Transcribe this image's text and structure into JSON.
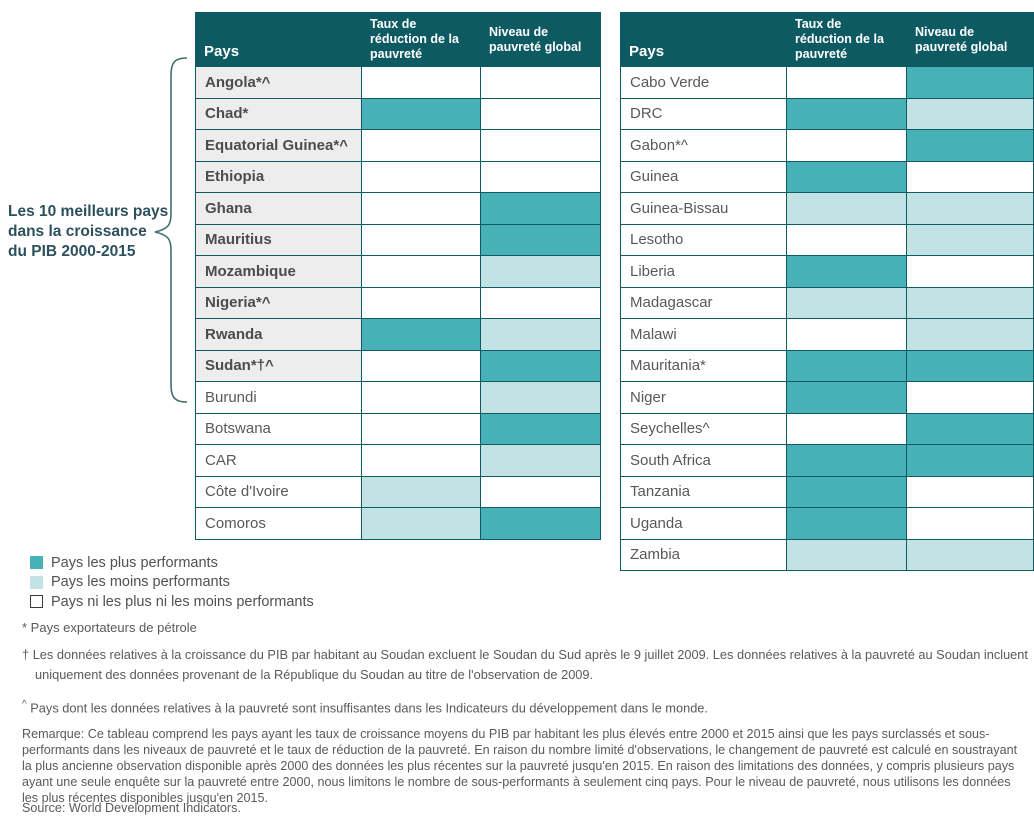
{
  "annotation": {
    "lines": [
      "Les 10 meilleurs pays",
      "dans la croissance",
      "du PIB 2000-2015"
    ]
  },
  "chart_data": {
    "type": "table",
    "columns": [
      "Pays",
      "Taux de réduction de la pauvreté",
      "Niveau de pauvreté global"
    ],
    "status_meaning": {
      "best": "Pays les plus performants",
      "worst": "Pays les moins performants",
      "neutral": "Pays ni les plus ni les moins performants"
    },
    "colors": {
      "best": "#47b1b7",
      "worst": "#c3e2e4",
      "neutral": "#ffffff",
      "header_bg": "#0d5a63",
      "top10_row_bg": "#ededed"
    },
    "tables": [
      {
        "rows": [
          {
            "country": "Angola*^",
            "top10": true,
            "poverty_reduction": "neutral",
            "poverty_level": "neutral"
          },
          {
            "country": "Chad*",
            "top10": true,
            "poverty_reduction": "best",
            "poverty_level": "neutral"
          },
          {
            "country": "Equatorial Guinea*^",
            "top10": true,
            "poverty_reduction": "neutral",
            "poverty_level": "neutral"
          },
          {
            "country": "Ethiopia",
            "top10": true,
            "poverty_reduction": "neutral",
            "poverty_level": "neutral"
          },
          {
            "country": "Ghana",
            "top10": true,
            "poverty_reduction": "neutral",
            "poverty_level": "best"
          },
          {
            "country": "Mauritius",
            "top10": true,
            "poverty_reduction": "neutral",
            "poverty_level": "best"
          },
          {
            "country": "Mozambique",
            "top10": true,
            "poverty_reduction": "neutral",
            "poverty_level": "worst"
          },
          {
            "country": "Nigeria*^",
            "top10": true,
            "poverty_reduction": "neutral",
            "poverty_level": "neutral"
          },
          {
            "country": "Rwanda",
            "top10": true,
            "poverty_reduction": "best",
            "poverty_level": "worst"
          },
          {
            "country": "Sudan*†^",
            "top10": true,
            "poverty_reduction": "neutral",
            "poverty_level": "best"
          },
          {
            "country": "Burundi",
            "top10": false,
            "poverty_reduction": "neutral",
            "poverty_level": "worst"
          },
          {
            "country": "Botswana",
            "top10": false,
            "poverty_reduction": "neutral",
            "poverty_level": "best"
          },
          {
            "country": "CAR",
            "top10": false,
            "poverty_reduction": "neutral",
            "poverty_level": "worst"
          },
          {
            "country": "Côte d'Ivoire",
            "top10": false,
            "poverty_reduction": "worst",
            "poverty_level": "neutral"
          },
          {
            "country": "Comoros",
            "top10": false,
            "poverty_reduction": "worst",
            "poverty_level": "best"
          }
        ]
      },
      {
        "rows": [
          {
            "country": "Cabo Verde",
            "top10": false,
            "poverty_reduction": "neutral",
            "poverty_level": "best"
          },
          {
            "country": "DRC",
            "top10": false,
            "poverty_reduction": "best",
            "poverty_level": "worst"
          },
          {
            "country": "Gabon*^",
            "top10": false,
            "poverty_reduction": "neutral",
            "poverty_level": "best"
          },
          {
            "country": "Guinea",
            "top10": false,
            "poverty_reduction": "best",
            "poverty_level": "neutral"
          },
          {
            "country": "Guinea-Bissau",
            "top10": false,
            "poverty_reduction": "worst",
            "poverty_level": "worst"
          },
          {
            "country": "Lesotho",
            "top10": false,
            "poverty_reduction": "neutral",
            "poverty_level": "worst"
          },
          {
            "country": "Liberia",
            "top10": false,
            "poverty_reduction": "best",
            "poverty_level": "neutral"
          },
          {
            "country": "Madagascar",
            "top10": false,
            "poverty_reduction": "worst",
            "poverty_level": "worst"
          },
          {
            "country": "Malawi",
            "top10": false,
            "poverty_reduction": "neutral",
            "poverty_level": "worst"
          },
          {
            "country": "Mauritania*",
            "top10": false,
            "poverty_reduction": "best",
            "poverty_level": "best"
          },
          {
            "country": "Niger",
            "top10": false,
            "poverty_reduction": "best",
            "poverty_level": "neutral"
          },
          {
            "country": "Seychelles^",
            "top10": false,
            "poverty_reduction": "neutral",
            "poverty_level": "best"
          },
          {
            "country": "South Africa",
            "top10": false,
            "poverty_reduction": "best",
            "poverty_level": "best"
          },
          {
            "country": "Tanzania",
            "top10": false,
            "poverty_reduction": "best",
            "poverty_level": "neutral"
          },
          {
            "country": "Uganda",
            "top10": false,
            "poverty_reduction": "best",
            "poverty_level": "neutral"
          },
          {
            "country": "Zambia",
            "top10": false,
            "poverty_reduction": "worst",
            "poverty_level": "worst"
          }
        ]
      }
    ],
    "legend": [
      {
        "key": "best",
        "label": "Pays les plus performants"
      },
      {
        "key": "worst",
        "label": "Pays les moins performants"
      },
      {
        "key": "neutral",
        "label": "Pays ni les plus ni les moins performants"
      }
    ],
    "footnotes": {
      "star": "* Pays exportateurs de pétrole",
      "dagger_marker": "†",
      "dagger": "Les données relatives à la croissance du PIB par habitant au Soudan excluent le Soudan du Sud après le 9 juillet 2009. Les données relatives à la pauvreté au Soudan incluent uniquement des données provenant de la République du Soudan au titre de l'observation de 2009.",
      "caret_marker": "^",
      "caret": "Pays dont les données relatives à la pauvreté sont insuffisantes dans les Indicateurs du développement dans le monde.",
      "remark": "Remarque: Ce tableau comprend les pays ayant les taux de croissance moyens du PIB par habitant les plus élevés entre 2000 et 2015 ainsi que les pays surclassés et sous-performants dans les niveaux de pauvreté et le taux de réduction de la pauvreté. En raison du nombre limité d'observations, le changement de pauvreté est calculé en soustrayant la plus ancienne observation disponible après 2000 des données les plus récentes sur la pauvreté jusqu'en 2015. En raison des limitations des données, y compris plusieurs pays ayant une seule enquête sur la pauvreté entre 2000, nous limitons le nombre de sous-performants à seulement cinq pays. Pour le niveau de pauvreté, nous utilisons les données les plus récentes disponibles jusqu'en 2015.",
      "source": "Source: World Development Indicators."
    }
  }
}
